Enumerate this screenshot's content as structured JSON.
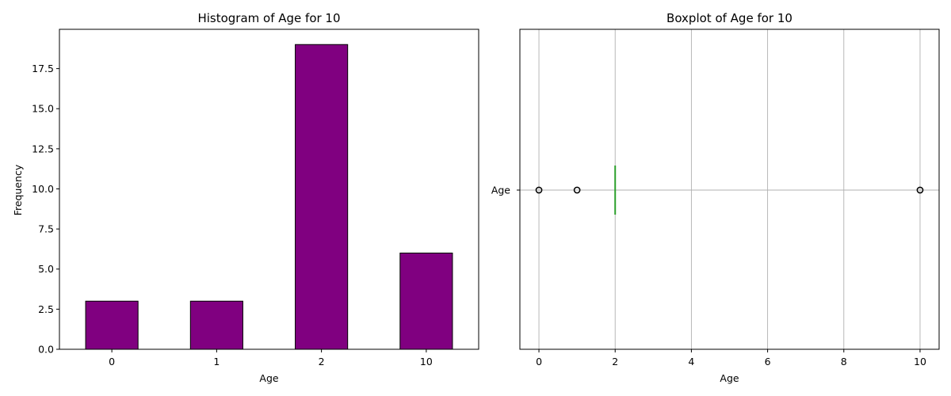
{
  "chart_data": [
    {
      "type": "bar",
      "title": "Histogram of Age for 10",
      "xlabel": "Age",
      "ylabel": "Frequency",
      "categories": [
        "0",
        "1",
        "2",
        "10"
      ],
      "values": [
        3,
        3,
        19,
        6
      ],
      "ylim": [
        0,
        19.95
      ],
      "yticks": [
        0.0,
        2.5,
        5.0,
        7.5,
        10.0,
        12.5,
        15.0,
        17.5
      ],
      "ytick_labels": [
        "0.0",
        "2.5",
        "5.0",
        "7.5",
        "10.0",
        "12.5",
        "15.0",
        "17.5"
      ],
      "grid": false,
      "colors": {
        "bar_fill": "#800080",
        "bar_edge": "#000000"
      }
    },
    {
      "type": "boxplot",
      "title": "Boxplot of Age for 10",
      "xlabel": "Age",
      "category": "Age",
      "xlim": [
        -0.5,
        10.5
      ],
      "xticks": [
        0,
        2,
        4,
        6,
        8,
        10
      ],
      "xtick_labels": [
        "0",
        "2",
        "4",
        "6",
        "8",
        "10"
      ],
      "box": {
        "q1": 2,
        "median": 2,
        "q3": 2,
        "whisker_low": 2,
        "whisker_high": 2
      },
      "outliers": [
        0,
        1,
        10
      ],
      "grid": true,
      "colors": {
        "median": "#2ca02c",
        "box": "#1f77b4",
        "grid": "#b0b0b0",
        "outlier_edge": "#000000"
      }
    }
  ]
}
